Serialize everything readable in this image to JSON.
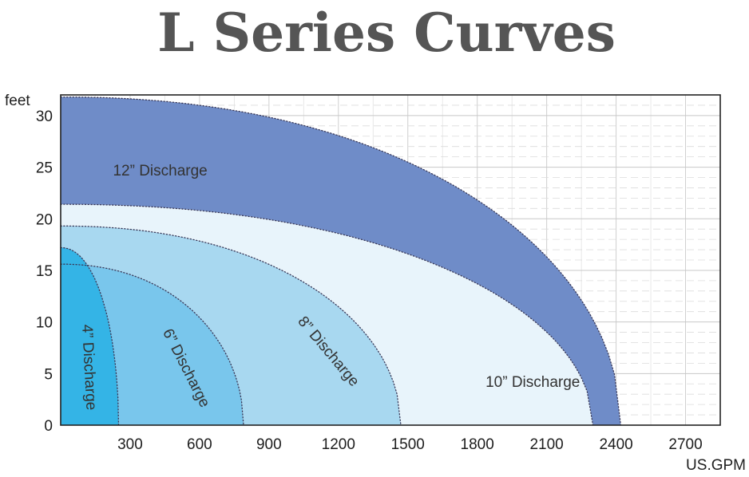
{
  "chart_data": {
    "type": "area",
    "title": "L Series Curves",
    "xlabel": "US.GPM",
    "ylabel": "feet",
    "xlim": [
      0,
      2850
    ],
    "ylim": [
      0,
      32
    ],
    "x_ticks": [
      300,
      600,
      900,
      1200,
      1500,
      1800,
      2100,
      2400,
      2700
    ],
    "x_tick_labels": [
      "300",
      "600",
      "900",
      "1200",
      "1500",
      "1800",
      "2100",
      "2400",
      "2700"
    ],
    "y_ticks": [
      0,
      5,
      10,
      15,
      20,
      25,
      30
    ],
    "y_tick_labels": [
      "0",
      "5",
      "10",
      "15",
      "20",
      "25",
      "30"
    ],
    "grid": true,
    "legend": "none",
    "series": [
      {
        "name": "12” Discharge",
        "color": "#6f8cc8",
        "upper": {
          "shutoff_head": 31.8,
          "max_flow": 2420
        },
        "lower": {
          "shutoff_head": 21.4,
          "max_flow": 2300
        }
      },
      {
        "name": "10” Discharge",
        "color": "#e8f4fb",
        "upper": {
          "shutoff_head": 21.4,
          "max_flow": 2300
        },
        "lower": {
          "shutoff_head": 19.3,
          "max_flow": 1470
        }
      },
      {
        "name": "8” Discharge",
        "color": "#a8d8f0",
        "upper": {
          "shutoff_head": 19.3,
          "max_flow": 1470
        },
        "lower": {
          "shutoff_head": 15.6,
          "max_flow": 790
        }
      },
      {
        "name": "6” Discharge",
        "color": "#79c6ec",
        "upper": {
          "shutoff_head": 15.6,
          "max_flow": 790
        },
        "lower": {
          "shutoff_head": 17.2,
          "max_flow": 250
        }
      },
      {
        "name": "4” Discharge",
        "color": "#34b4e6",
        "upper": {
          "shutoff_head": 17.2,
          "max_flow": 250
        },
        "lower": null
      }
    ],
    "annotations": [
      {
        "text": "12” Discharge",
        "x": 430,
        "y": 24.6,
        "angle": 0
      },
      {
        "text": "10” Discharge",
        "x": 2040,
        "y": 4.1,
        "angle": 0
      },
      {
        "text": "8” Discharge",
        "x": 1155,
        "y": 7.1,
        "angle": 50
      },
      {
        "text": "6” Discharge",
        "x": 540,
        "y": 5.5,
        "angle": 63
      },
      {
        "text": "4” Discharge",
        "x": 120,
        "y": 5.6,
        "angle": 87
      }
    ]
  }
}
